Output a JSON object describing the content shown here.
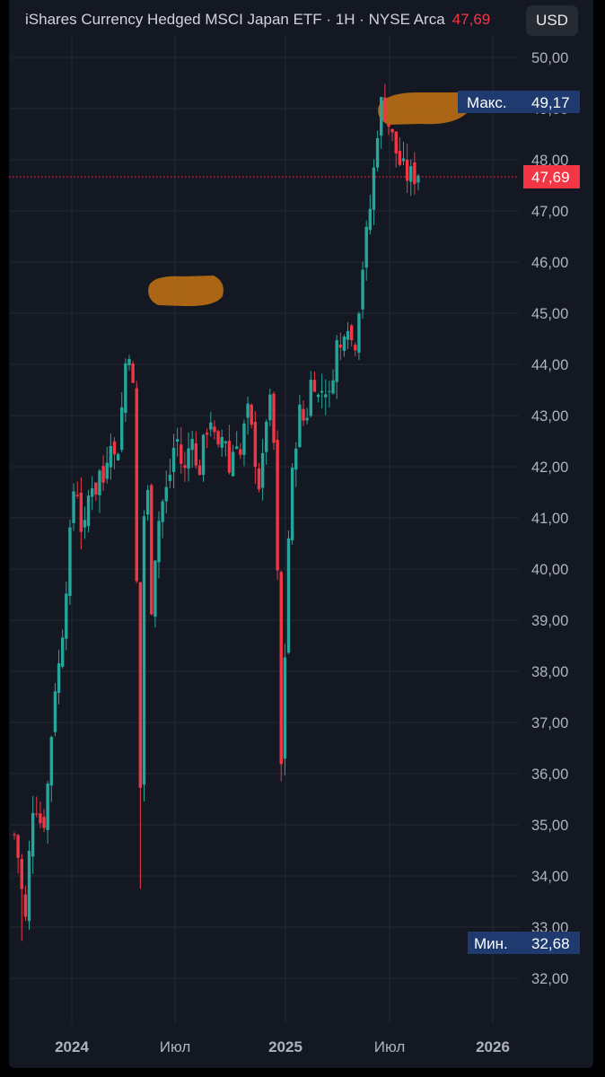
{
  "header": {
    "title": "iShares Currency Hedged MSCI Japan ETF · 1H · NYSE Arca",
    "last_price": "47,69",
    "currency_button": "USD"
  },
  "labels": {
    "max_label": "Макс.",
    "max_value": "49,17",
    "current_value": "47,69",
    "min_label": "Мин.",
    "min_value": "32,68"
  },
  "colors": {
    "up": "#26a69a",
    "down": "#f23645",
    "background": "#141822",
    "grid": "#232834",
    "badge": "#1e3a6e",
    "highlight": "#c47412"
  },
  "chart_data": {
    "type": "candlestick",
    "title": "iShares Currency Hedged MSCI Japan ETF · 1H · NYSE Arca",
    "ylim": [
      31.3,
      50.6
    ],
    "y_ticks": [
      "50,00",
      "49,00",
      "48,00",
      "47,00",
      "46,00",
      "45,00",
      "44,00",
      "43,00",
      "42,00",
      "41,00",
      "40,00",
      "39,00",
      "38,00",
      "37,00",
      "36,00",
      "35,00",
      "34,00",
      "33,00",
      "32,00"
    ],
    "x_ticks": [
      "2024",
      "Июл",
      "2025",
      "Июл",
      "2026"
    ],
    "grid": true,
    "last_price": 47.69,
    "max": 49.17,
    "min": 32.68,
    "series_points": [
      [
        0.0,
        34.8
      ],
      [
        0.011,
        34.3
      ],
      [
        0.022,
        33.4
      ],
      [
        0.03,
        33.0
      ],
      [
        0.04,
        35.1
      ],
      [
        0.05,
        35.6
      ],
      [
        0.06,
        35.2
      ],
      [
        0.07,
        34.9
      ],
      [
        0.08,
        35.5
      ],
      [
        0.09,
        36.6
      ],
      [
        0.1,
        37.7
      ],
      [
        0.11,
        38.1
      ],
      [
        0.12,
        38.9
      ],
      [
        0.13,
        39.9
      ],
      [
        0.14,
        40.8
      ],
      [
        0.15,
        41.9
      ],
      [
        0.16,
        41.3
      ],
      [
        0.17,
        40.4
      ],
      [
        0.18,
        41.2
      ],
      [
        0.19,
        41.8
      ],
      [
        0.2,
        41.5
      ],
      [
        0.21,
        41.9
      ],
      [
        0.22,
        41.7
      ],
      [
        0.23,
        42.3
      ],
      [
        0.24,
        42.7
      ],
      [
        0.25,
        42.0
      ],
      [
        0.26,
        42.6
      ],
      [
        0.27,
        43.5
      ],
      [
        0.28,
        44.5
      ],
      [
        0.29,
        44.1
      ],
      [
        0.3,
        42.4
      ],
      [
        0.305,
        37.5
      ],
      [
        0.31,
        34.0
      ],
      [
        0.315,
        38.5
      ],
      [
        0.32,
        41.0
      ],
      [
        0.33,
        41.5
      ],
      [
        0.34,
        39.2
      ],
      [
        0.35,
        40.5
      ],
      [
        0.36,
        41.1
      ],
      [
        0.37,
        41.4
      ],
      [
        0.38,
        41.6
      ],
      [
        0.39,
        42.1
      ],
      [
        0.4,
        42.7
      ],
      [
        0.41,
        42.2
      ],
      [
        0.42,
        41.8
      ],
      [
        0.43,
        42.3
      ],
      [
        0.44,
        42.8
      ],
      [
        0.45,
        41.9
      ],
      [
        0.46,
        42.0
      ],
      [
        0.47,
        42.5
      ],
      [
        0.48,
        42.9
      ],
      [
        0.49,
        43.0
      ],
      [
        0.5,
        42.1
      ],
      [
        0.51,
        42.4
      ],
      [
        0.52,
        42.9
      ],
      [
        0.53,
        41.8
      ],
      [
        0.54,
        42.3
      ],
      [
        0.55,
        42.6
      ],
      [
        0.56,
        42.2
      ],
      [
        0.57,
        42.8
      ],
      [
        0.58,
        43.1
      ],
      [
        0.59,
        42.5
      ],
      [
        0.6,
        42.0
      ],
      [
        0.61,
        41.4
      ],
      [
        0.62,
        42.8
      ],
      [
        0.63,
        43.3
      ],
      [
        0.64,
        42.9
      ],
      [
        0.65,
        40.8
      ],
      [
        0.655,
        37.2
      ],
      [
        0.66,
        36.0
      ],
      [
        0.67,
        38.4
      ],
      [
        0.68,
        40.9
      ],
      [
        0.69,
        42.0
      ],
      [
        0.7,
        42.8
      ],
      [
        0.71,
        43.2
      ],
      [
        0.72,
        42.7
      ],
      [
        0.73,
        43.5
      ],
      [
        0.74,
        43.9
      ],
      [
        0.75,
        43.3
      ],
      [
        0.76,
        43.5
      ],
      [
        0.77,
        43.6
      ],
      [
        0.78,
        43.3
      ],
      [
        0.79,
        44.0
      ],
      [
        0.8,
        44.5
      ],
      [
        0.81,
        44.2
      ],
      [
        0.82,
        45.1
      ],
      [
        0.83,
        44.7
      ],
      [
        0.84,
        44.2
      ],
      [
        0.85,
        44.9
      ],
      [
        0.86,
        45.8
      ],
      [
        0.87,
        46.4
      ],
      [
        0.88,
        47.0
      ],
      [
        0.89,
        47.8
      ],
      [
        0.9,
        48.7
      ],
      [
        0.91,
        49.17
      ],
      [
        0.93,
        48.6
      ],
      [
        0.95,
        48.0
      ],
      [
        0.97,
        47.69
      ],
      [
        1.0,
        47.69
      ]
    ]
  }
}
